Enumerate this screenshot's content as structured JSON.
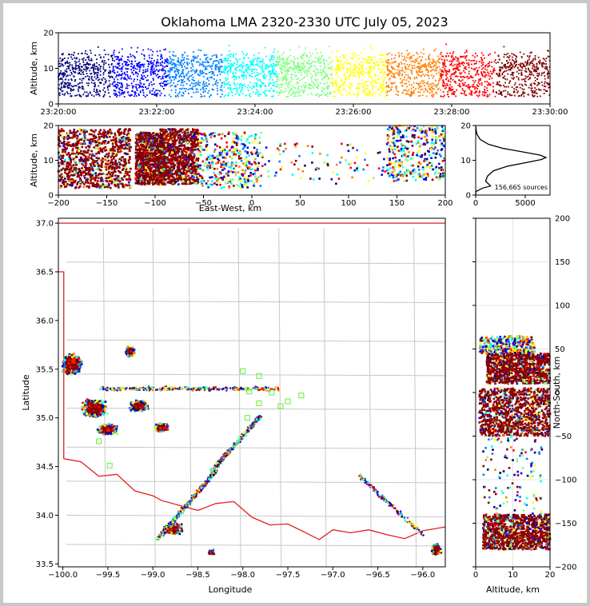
{
  "chart_data": [
    {
      "panel": "altitude-time",
      "type": "scatter",
      "title": "Oklahoma LMA 2320-2330 UTC July 05, 2023",
      "xlabel": "",
      "ylabel": "Altitude, km",
      "x_ticks": [
        "23:20:00",
        "23:22:00",
        "23:24:00",
        "23:26:00",
        "23:28:00",
        "23:30:00"
      ],
      "y_ticks": [
        "0",
        "10",
        "20"
      ],
      "xlim": [
        "23:20:00",
        "23:30:00"
      ],
      "ylim": [
        0,
        20
      ],
      "color_by": "time",
      "colormap": [
        "#00007f",
        "#0000ff",
        "#007fff",
        "#00ffff",
        "#7fff7f",
        "#ffff00",
        "#ff7f00",
        "#ff0000",
        "#7f0000"
      ]
    },
    {
      "panel": "east-west-altitude",
      "type": "scatter",
      "xlabel": "East-West, km",
      "ylabel": "Altitude, km",
      "x_ticks": [
        "−200",
        "−150",
        "−100",
        "−50",
        "0",
        "50",
        "100",
        "150",
        "200"
      ],
      "y_ticks": [
        "0",
        "10",
        "20"
      ],
      "xlim": [
        -200,
        200
      ],
      "ylim": [
        0,
        20
      ],
      "clusters": [
        {
          "x_range": [
            -200,
            -125
          ],
          "alt_range": [
            2,
            19
          ],
          "density": "high"
        },
        {
          "x_range": [
            -120,
            -90
          ],
          "alt_range": [
            3,
            18
          ],
          "density": "high"
        },
        {
          "x_range": [
            -95,
            -55
          ],
          "alt_range": [
            3,
            19
          ],
          "density": "high"
        },
        {
          "x_range": [
            -55,
            10
          ],
          "alt_range": [
            2,
            18
          ],
          "density": "medium"
        },
        {
          "x_range": [
            10,
            140
          ],
          "alt_range": [
            3,
            15
          ],
          "density": "low"
        },
        {
          "x_range": [
            140,
            200
          ],
          "alt_range": [
            4,
            20
          ],
          "density": "medium"
        }
      ]
    },
    {
      "panel": "altitude-histogram",
      "type": "line",
      "x_ticks": [
        "0",
        "5000"
      ],
      "y_ticks": [
        "0",
        "10",
        "20"
      ],
      "xlim": [
        0,
        7500
      ],
      "ylim": [
        0,
        20
      ],
      "annotation": "156,665 sources",
      "profile": [
        [
          0,
          0
        ],
        [
          20,
          1
        ],
        [
          700,
          2
        ],
        [
          1500,
          2.6
        ],
        [
          1300,
          3.2
        ],
        [
          1000,
          4
        ],
        [
          1200,
          5.5
        ],
        [
          1800,
          7
        ],
        [
          3200,
          8.3
        ],
        [
          5200,
          9.4
        ],
        [
          6600,
          10.2
        ],
        [
          7100,
          10.8
        ],
        [
          6500,
          11.5
        ],
        [
          4800,
          12.4
        ],
        [
          2800,
          13.4
        ],
        [
          1300,
          14.6
        ],
        [
          450,
          16
        ],
        [
          120,
          17.5
        ],
        [
          30,
          19
        ],
        [
          0,
          20
        ]
      ]
    },
    {
      "panel": "plan-view",
      "type": "scatter",
      "xlabel": "Longitude",
      "ylabel": "Latitude",
      "x_ticks": [
        "−100.0",
        "−99.5",
        "−99.0",
        "−98.5",
        "−98.0",
        "−97.5",
        "−97.0",
        "−96.5",
        "−96.0"
      ],
      "y_ticks": [
        "33.5",
        "34.0",
        "34.5",
        "35.0",
        "35.5",
        "36.0",
        "36.5",
        "37.0"
      ],
      "xlim": [
        -100.05,
        -95.75
      ],
      "ylim": [
        33.47,
        37.05
      ],
      "stations": [
        [
          -98.0,
          35.48
        ],
        [
          -97.82,
          35.43
        ],
        [
          -97.93,
          35.27
        ],
        [
          -97.68,
          35.26
        ],
        [
          -97.35,
          35.23
        ],
        [
          -97.5,
          35.17
        ],
        [
          -97.58,
          35.12
        ],
        [
          -97.82,
          35.15
        ],
        [
          -97.95,
          35.0
        ],
        [
          -99.6,
          34.76
        ],
        [
          -99.48,
          34.51
        ]
      ],
      "clusters": [
        {
          "lon": -99.9,
          "lat": 35.55,
          "sx": 0.12,
          "sy": 0.12,
          "n": 900
        },
        {
          "lon": -99.65,
          "lat": 35.1,
          "sx": 0.15,
          "sy": 0.1,
          "n": 1100
        },
        {
          "lon": -99.5,
          "lat": 34.88,
          "sx": 0.12,
          "sy": 0.06,
          "n": 600
        },
        {
          "lon": -99.15,
          "lat": 35.12,
          "sx": 0.12,
          "sy": 0.06,
          "n": 700
        },
        {
          "lon": -99.25,
          "lat": 35.68,
          "sx": 0.06,
          "sy": 0.06,
          "n": 300
        },
        {
          "lon": -98.78,
          "lat": 33.86,
          "sx": 0.12,
          "sy": 0.06,
          "n": 900
        },
        {
          "lon": -95.85,
          "lat": 33.65,
          "sx": 0.06,
          "sy": 0.06,
          "n": 400
        },
        {
          "lon": -98.35,
          "lat": 33.62,
          "sx": 0.04,
          "sy": 0.03,
          "n": 80
        },
        {
          "lon": -98.9,
          "lat": 34.9,
          "sx": 0.1,
          "sy": 0.05,
          "n": 300
        }
      ],
      "lines": [
        {
          "from": [
            -98.95,
            33.75
          ],
          "to": [
            -98.3,
            34.45
          ],
          "n": 450
        },
        {
          "from": [
            -98.35,
            34.45
          ],
          "to": [
            -97.8,
            35.02
          ],
          "n": 350
        },
        {
          "from": [
            -99.6,
            35.3
          ],
          "to": [
            -97.6,
            35.3
          ],
          "n": 300
        },
        {
          "from": [
            -96.7,
            34.4
          ],
          "to": [
            -96.0,
            33.8
          ],
          "n": 150
        }
      ]
    },
    {
      "panel": "altitude-north-south",
      "type": "scatter",
      "xlabel": "Altitude, km",
      "ylabel": "North-South, km",
      "x_ticks": [
        "0",
        "10",
        "20"
      ],
      "y_ticks": [
        "−200",
        "−150",
        "−100",
        "−50",
        "0",
        "50",
        "100",
        "150",
        "200"
      ],
      "xlim": [
        0,
        20
      ],
      "ylim": [
        -200,
        200
      ],
      "clusters": [
        {
          "ns_range": [
            10,
            45
          ],
          "alt_range": [
            3,
            20
          ],
          "density": "high"
        },
        {
          "ns_range": [
            -50,
            5
          ],
          "alt_range": [
            1,
            20
          ],
          "density": "high"
        },
        {
          "ns_range": [
            -180,
            -140
          ],
          "alt_range": [
            2,
            20
          ],
          "density": "high"
        },
        {
          "ns_range": [
            -140,
            -50
          ],
          "alt_range": [
            2,
            18
          ],
          "density": "low"
        },
        {
          "ns_range": [
            45,
            65
          ],
          "alt_range": [
            1,
            16
          ],
          "density": "medium"
        }
      ]
    }
  ]
}
